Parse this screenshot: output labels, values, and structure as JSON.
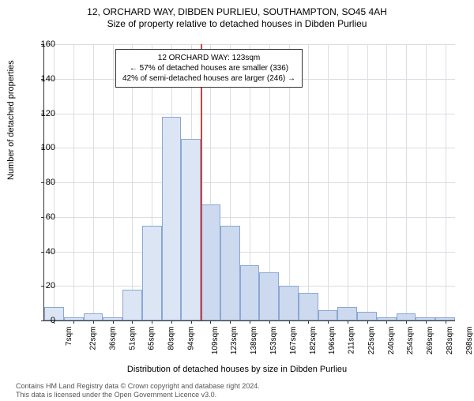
{
  "chart": {
    "type": "histogram",
    "title_main": "12, ORCHARD WAY, DIBDEN PURLIEU, SOUTHAMPTON, SO45 4AH",
    "title_sub": "Size of property relative to detached houses in Dibden Purlieu",
    "y_axis_label": "Number of detached properties",
    "x_axis_label": "Distribution of detached houses by size in Dibden Purlieu",
    "ylim": [
      0,
      160
    ],
    "ytick_step": 20,
    "y_ticks": [
      0,
      20,
      40,
      60,
      80,
      100,
      120,
      140,
      160
    ],
    "x_ticks": [
      "7sqm",
      "22sqm",
      "36sqm",
      "51sqm",
      "65sqm",
      "80sqm",
      "94sqm",
      "109sqm",
      "123sqm",
      "138sqm",
      "153sqm",
      "167sqm",
      "182sqm",
      "196sqm",
      "211sqm",
      "225sqm",
      "240sqm",
      "254sqm",
      "269sqm",
      "283sqm",
      "298sqm"
    ],
    "bars": [
      {
        "x": 0,
        "h": 8
      },
      {
        "x": 1,
        "h": 2
      },
      {
        "x": 2,
        "h": 4
      },
      {
        "x": 3,
        "h": 2
      },
      {
        "x": 4,
        "h": 18
      },
      {
        "x": 5,
        "h": 55
      },
      {
        "x": 6,
        "h": 118
      },
      {
        "x": 7,
        "h": 105
      },
      {
        "x": 8,
        "h": 67
      },
      {
        "x": 9,
        "h": 55
      },
      {
        "x": 10,
        "h": 32
      },
      {
        "x": 11,
        "h": 28
      },
      {
        "x": 12,
        "h": 20
      },
      {
        "x": 13,
        "h": 16
      },
      {
        "x": 14,
        "h": 6
      },
      {
        "x": 15,
        "h": 8
      },
      {
        "x": 16,
        "h": 5
      },
      {
        "x": 17,
        "h": 2
      },
      {
        "x": 18,
        "h": 4
      },
      {
        "x": 19,
        "h": 2
      },
      {
        "x": 20,
        "h": 2
      }
    ],
    "reference_x": 8,
    "bar_color": "#dbe5f4",
    "bar_color_right": "#cdd9ee",
    "bar_border": "#8aa7d4",
    "grid_color": "#dadde2",
    "ref_color": "#d04040",
    "bg_color": "#ffffff",
    "annotation": {
      "line1": "12 ORCHARD WAY: 123sqm",
      "line2": "← 57% of detached houses are smaller (336)",
      "line3": "42% of semi-detached houses are larger (246) →"
    },
    "footer": {
      "line1": "Contains HM Land Registry data © Crown copyright and database right 2024.",
      "line2": "This data is licensed under the Open Government Licence v3.0."
    }
  }
}
